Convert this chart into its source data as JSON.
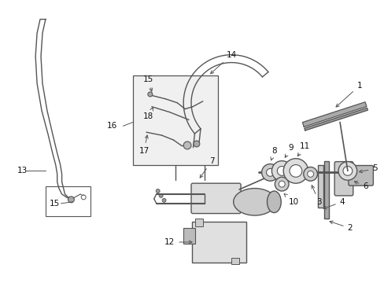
{
  "bg_color": "#ffffff",
  "fig_width": 4.89,
  "fig_height": 3.6,
  "dpi": 100,
  "line_color": "#555555",
  "label_color": "#111111",
  "label_fontsize": 7.5,
  "arrow_lw": 0.7
}
